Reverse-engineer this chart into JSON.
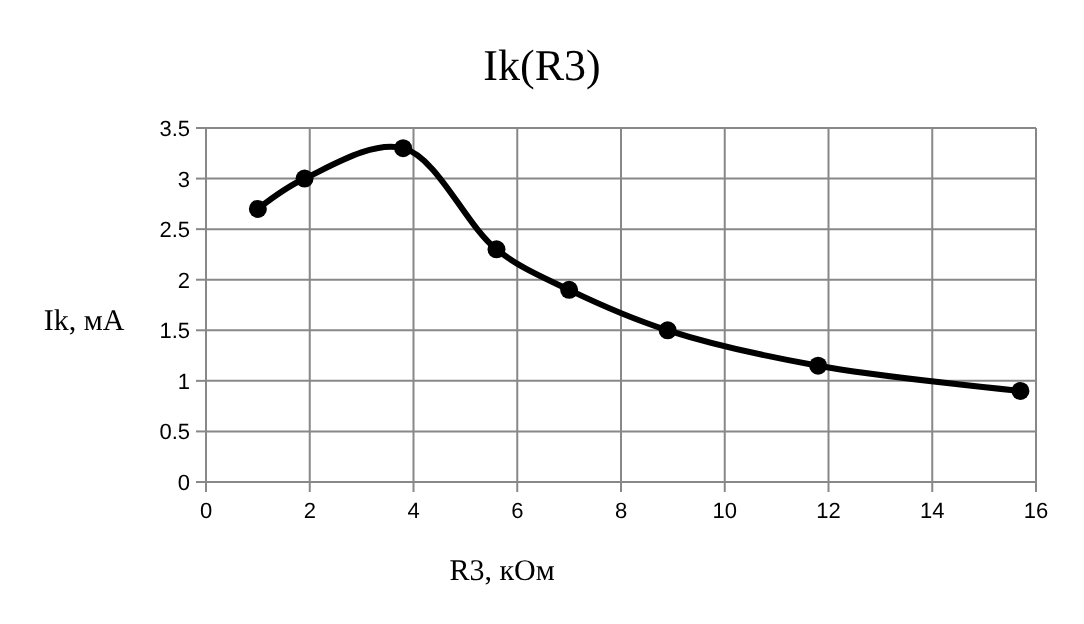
{
  "chart_data": {
    "type": "line",
    "title": "Ik(R3)",
    "xlabel": "R3, кОм",
    "ylabel": "Ik, мА",
    "x": [
      1.0,
      1.9,
      3.8,
      5.6,
      7.0,
      8.9,
      11.8,
      15.7
    ],
    "series": [
      {
        "color": "#000000",
        "values": [
          2.7,
          3.0,
          3.3,
          2.3,
          1.9,
          1.5,
          1.15,
          0.9
        ]
      }
    ],
    "xlim": [
      0,
      16
    ],
    "xticks": [
      0,
      2,
      4,
      6,
      8,
      10,
      12,
      14,
      16
    ],
    "ylim": [
      0,
      3.5
    ],
    "yticks": [
      0,
      0.5,
      1,
      1.5,
      2,
      2.5,
      3,
      3.5
    ],
    "grid": true,
    "marker": "circle",
    "line_style": "solid"
  }
}
